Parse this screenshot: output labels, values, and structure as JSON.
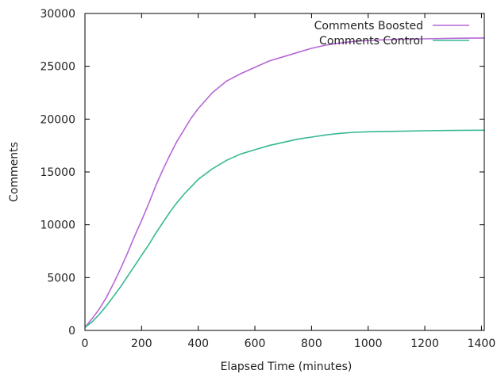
{
  "chart_data": {
    "type": "line",
    "title": "",
    "xlabel": "Elapsed Time (minutes)",
    "ylabel": "Comments",
    "xlim": [
      0,
      1410
    ],
    "ylim": [
      0,
      30000
    ],
    "x_ticks": [
      0,
      200,
      400,
      600,
      800,
      1000,
      1200,
      1400
    ],
    "y_ticks": [
      0,
      5000,
      10000,
      15000,
      20000,
      25000,
      30000
    ],
    "grid": false,
    "legend_position": "top-right",
    "series": [
      {
        "name": "Comments Boosted",
        "color": "#b667d6",
        "x": [
          0,
          25,
          50,
          75,
          100,
          125,
          150,
          175,
          200,
          225,
          250,
          275,
          300,
          325,
          350,
          375,
          400,
          450,
          500,
          550,
          600,
          650,
          700,
          750,
          800,
          850,
          900,
          950,
          1000,
          1100,
          1200,
          1300,
          1410
        ],
        "y": [
          300,
          1100,
          2000,
          3100,
          4400,
          5800,
          7300,
          8900,
          10400,
          12000,
          13700,
          15200,
          16600,
          17900,
          19000,
          20100,
          21000,
          22500,
          23600,
          24300,
          24900,
          25500,
          25900,
          26300,
          26700,
          27000,
          27200,
          27350,
          27450,
          27550,
          27600,
          27650,
          27680
        ]
      },
      {
        "name": "Comments Control",
        "color": "#36b894",
        "x": [
          0,
          25,
          50,
          75,
          100,
          125,
          150,
          175,
          200,
          225,
          250,
          275,
          300,
          325,
          350,
          375,
          400,
          450,
          500,
          550,
          600,
          650,
          700,
          750,
          800,
          850,
          900,
          950,
          1000,
          1100,
          1200,
          1300,
          1410
        ],
        "y": [
          300,
          800,
          1500,
          2300,
          3200,
          4100,
          5100,
          6100,
          7100,
          8100,
          9200,
          10200,
          11200,
          12100,
          12900,
          13600,
          14300,
          15300,
          16100,
          16700,
          17100,
          17500,
          17800,
          18100,
          18300,
          18500,
          18650,
          18750,
          18800,
          18850,
          18900,
          18930,
          18950
        ]
      }
    ]
  }
}
